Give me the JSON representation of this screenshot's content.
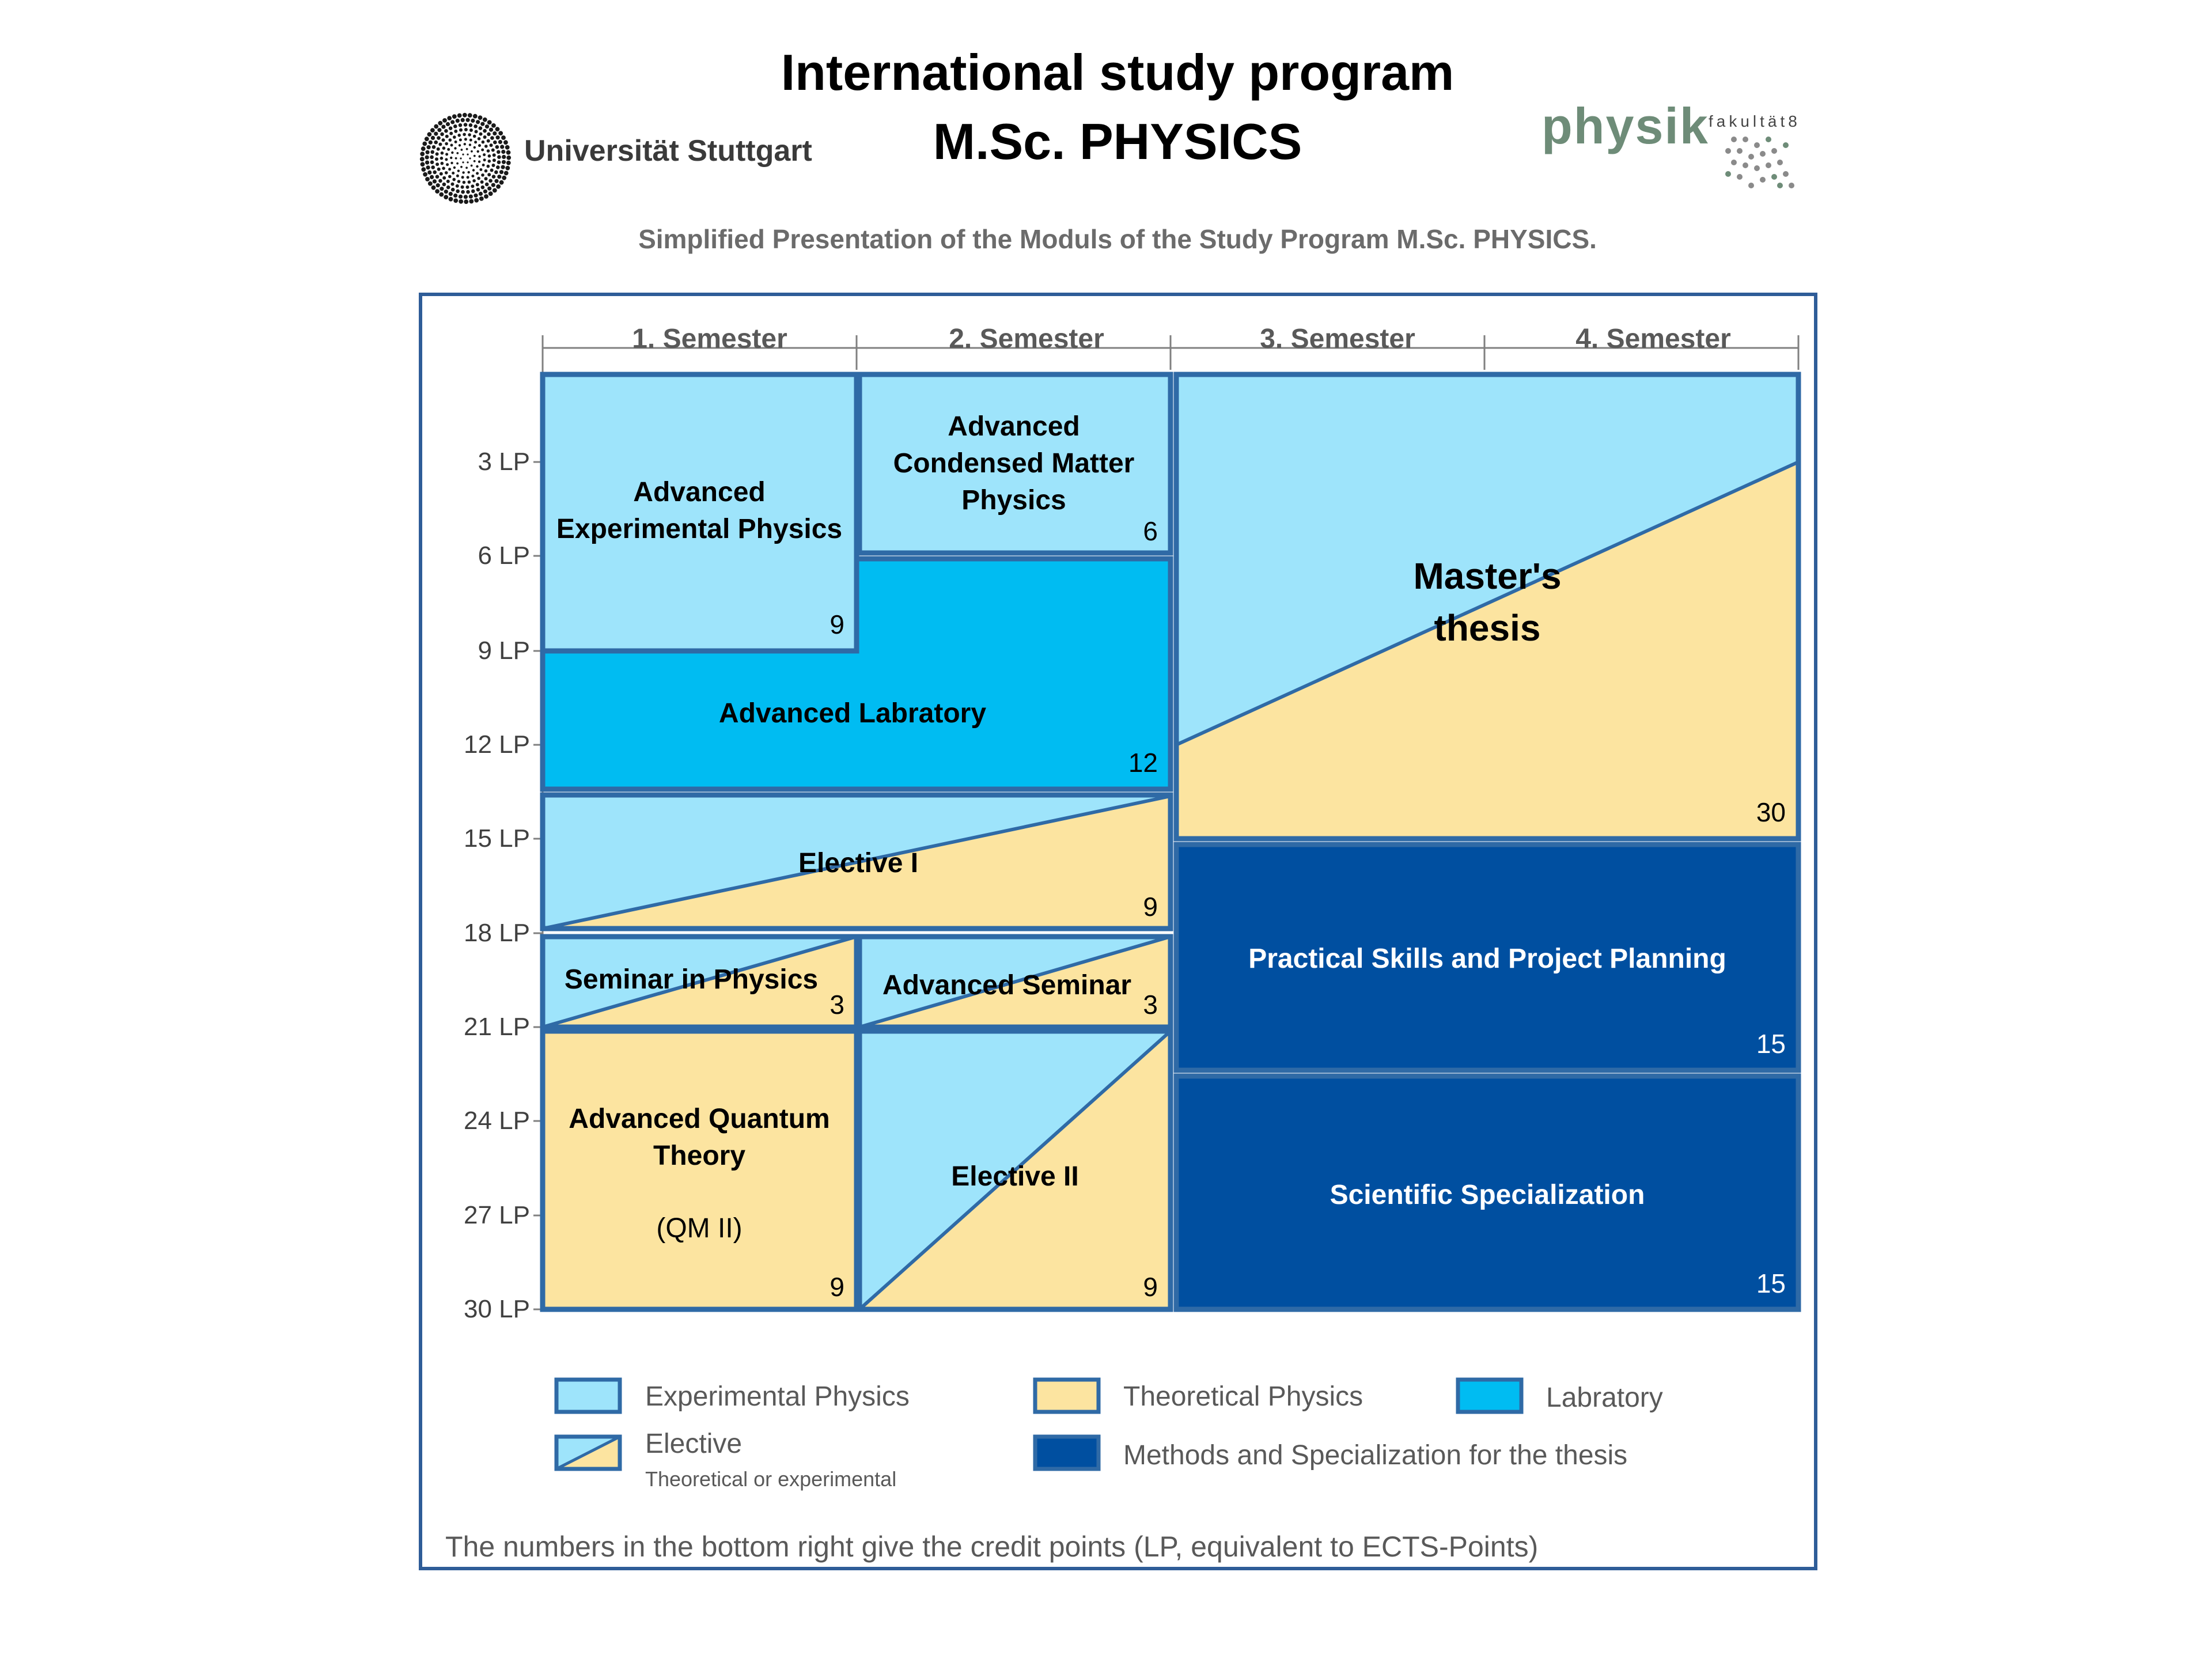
{
  "header": {
    "title_line1": "International study program",
    "title_line2": "M.Sc. PHYSICS",
    "university": "Universität Stuttgart",
    "faculty_logo_main": "physik",
    "faculty_logo_sub": "fakultät8",
    "subtitle": "Simplified Presentation of the Moduls of the Study Program M.Sc. PHYSICS."
  },
  "diagram": {
    "semesters": [
      "1. Semester",
      "2. Semester",
      "3. Semester",
      "4. Semester"
    ],
    "lp_ticks": [
      "3 LP",
      "6 LP",
      "9 LP",
      "12 LP",
      "15 LP",
      "18 LP",
      "21 LP",
      "24 LP",
      "27 LP",
      "30 LP"
    ],
    "modules": {
      "adv_exp": {
        "label1": "Advanced",
        "label2": "Experimental Physics",
        "credits": "9"
      },
      "adv_cond": {
        "label1": "Advanced",
        "label2": "Condensed Matter",
        "label3": "Physics",
        "credits": "6"
      },
      "adv_lab": {
        "label": "Advanced Labratory",
        "credits": "12"
      },
      "elective1": {
        "label": "Elective I",
        "credits": "9"
      },
      "seminar": {
        "label": "Seminar in Physics",
        "credits": "3"
      },
      "adv_seminar": {
        "label": "Advanced Seminar",
        "credits": "3"
      },
      "adv_qt": {
        "label1": "Advanced Quantum",
        "label2": "Theory",
        "label3": "(QM II)",
        "credits": "9"
      },
      "elective2": {
        "label": "Elective II",
        "credits": "9"
      },
      "thesis": {
        "label1": "Master's",
        "label2": "thesis",
        "credits": "30"
      },
      "practical": {
        "label": "Practical Skills and Project Planning",
        "credits": "15"
      },
      "specialization": {
        "label": "Scientific Specialization",
        "credits": "15"
      }
    },
    "legend": {
      "experimental": "Experimental Physics",
      "theoretical": "Theoretical Physics",
      "laboratory": "Labratory",
      "elective": "Elective",
      "elective_sub": "Theoretical  or experimental",
      "methods": "Methods and Specialization for the thesis"
    },
    "colors": {
      "experimental": "#9ee4fb",
      "theoretical": "#fce4a0",
      "laboratory": "#00bcf2",
      "methods": "#004fa0",
      "border": "#2f6aa6"
    }
  },
  "footer": {
    "note": "The numbers in the bottom right give the credit points (LP, equivalent to ECTS-Points)"
  }
}
